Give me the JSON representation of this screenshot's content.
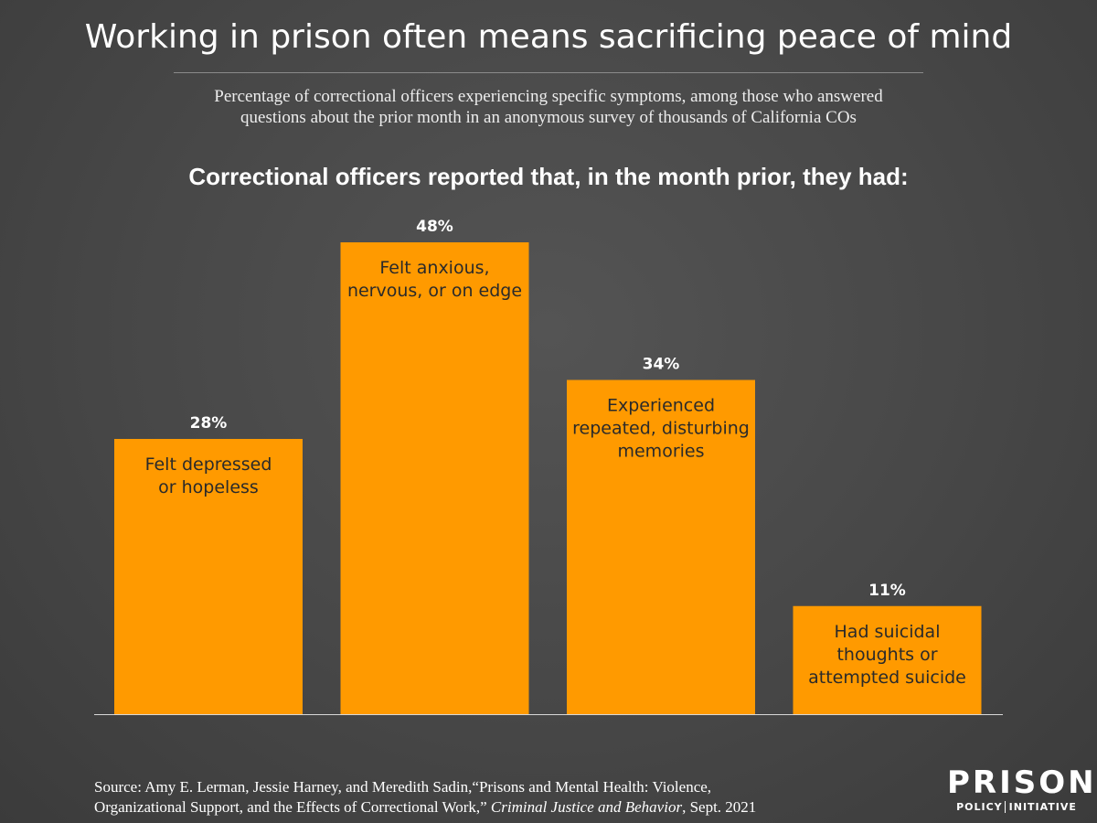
{
  "header": {
    "title": "Working in prison often means sacrificing peace of mind",
    "subtitle_line1": "Percentage of correctional officers experiencing specific symptoms, among those who answered",
    "subtitle_line2": "questions about the prior month in an anonymous survey of thousands of California COs"
  },
  "chart_data": {
    "type": "bar",
    "title": "Correctional officers reported that, in the month prior, they had:",
    "categories": [
      [
        "Felt depressed",
        "or hopeless"
      ],
      [
        "Felt anxious,",
        "nervous, or on edge"
      ],
      [
        "Experienced",
        "repeated, disturbing",
        "memories"
      ],
      [
        "Had suicidal",
        "thoughts or",
        "attempted suicide"
      ]
    ],
    "values": [
      28,
      48,
      34,
      11
    ],
    "value_labels": [
      "28%",
      "48%",
      "34%",
      "11%"
    ],
    "unit": "%",
    "ylim": [
      0,
      48
    ],
    "bar_color": "#ff9a00",
    "xlabel": "",
    "ylabel": ""
  },
  "footer": {
    "source_prefix": "Source: Amy E. Lerman, Jessie Harney, and Meredith Sadin,“Prisons and Mental Health: Violence,",
    "source_line2_a": "Organizational Support, and the Effects of Correctional Work,” ",
    "source_journal": "Criminal Justice and Behavior",
    "source_line2_b": ", Sept. 2021"
  },
  "logo": {
    "top": "PRISON",
    "bottom_a": "POLICY",
    "bottom_b": "INITIATIVE"
  }
}
